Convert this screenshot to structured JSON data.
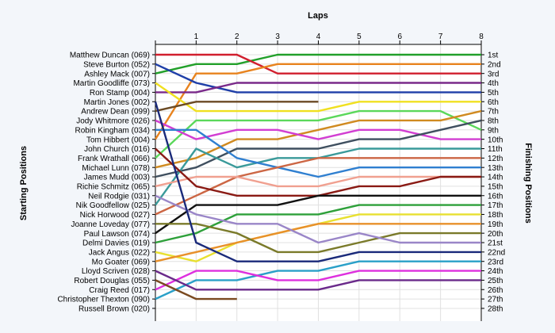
{
  "chart_data": {
    "type": "line",
    "title": "Laps",
    "ylabel_left": "Starting Positions",
    "ylabel_right": "Finishing Positions",
    "x_ticks": [
      "1",
      "2",
      "3",
      "4",
      "5",
      "6",
      "7",
      "8"
    ],
    "xlim": [
      0,
      8
    ],
    "ylim": [
      1,
      28
    ],
    "y_inverted": true,
    "grid": true,
    "starting_labels": [
      "Matthew Duncan (069)",
      "Steve Burton (052)",
      "Ashley Mack (007)",
      "Martin Goodliffe (073)",
      "Ron Stamp (004)",
      "Martin Jones (002)",
      "Andrew Dean (099)",
      "Jody Whitmore (026)",
      "Robin Kingham (034)",
      "Tom Hibbert (004)",
      "John Church (016)",
      "Frank Wrathall (066)",
      "Michael Lunn (078)",
      "James Mudd (003)",
      "Richie Schmitz (065)",
      "Neil Rodgie (031)",
      "Nik Goodfellow (025)",
      "Nick Horwood (027)",
      "Joanne Loveday (077)",
      "Paul Lawson (074)",
      "Delmi Davies (019)",
      "Jack Angus (022)",
      "Mo Goater (069)",
      "Lloyd Scriven (028)",
      "Robert Douglas (055)",
      "Craig Reed (017)",
      "Christopher Thexton (090)",
      "Russell Brown (020)"
    ],
    "finishing_labels": [
      "1st",
      "2nd",
      "3rd",
      "4th",
      "5th",
      "6th",
      "7th",
      "8th",
      "9th",
      "10th",
      "11th",
      "12th",
      "13th",
      "14th",
      "15th",
      "16th",
      "17th",
      "18th",
      "19th",
      "20th",
      "21st",
      "22nd",
      "23rd",
      "24th",
      "25th",
      "26th",
      "27th",
      "28th"
    ],
    "series": [
      {
        "color": "#22a02a",
        "positions": [
          3,
          2,
          2,
          1,
          1,
          1,
          1,
          1,
          1
        ]
      },
      {
        "color": "#d11f2e",
        "positions": [
          1,
          1,
          1,
          3,
          3,
          3,
          3,
          3,
          3
        ]
      },
      {
        "color": "#e8831e",
        "positions": [
          10,
          3,
          3,
          2,
          2,
          2,
          2,
          2,
          2
        ]
      },
      {
        "color": "#1f3fa8",
        "positions": [
          2,
          4,
          5,
          5,
          5,
          5,
          5,
          5,
          5
        ]
      },
      {
        "color": "#7a2a8a",
        "positions": [
          5,
          5,
          4,
          4,
          4,
          4,
          4,
          4,
          4
        ]
      },
      {
        "color": "#f0e020",
        "positions": [
          4,
          7,
          7,
          7,
          7,
          6,
          6,
          6,
          6
        ]
      },
      {
        "color": "#6b4a24",
        "positions": [
          7,
          6,
          6,
          6,
          6
        ]
      },
      {
        "color": "#5bd85b",
        "positions": [
          12,
          8,
          8,
          8,
          8,
          7,
          7,
          7,
          9
        ]
      },
      {
        "color": "#d08a20",
        "positions": [
          13,
          12,
          10,
          10,
          9,
          8,
          8,
          8,
          7
        ]
      },
      {
        "color": "#d23ed2",
        "positions": [
          8,
          10,
          9,
          9,
          10,
          9,
          9,
          10,
          10
        ]
      },
      {
        "color": "#3f4f5f",
        "positions": [
          14,
          13,
          11,
          11,
          11,
          10,
          10,
          9,
          8
        ]
      },
      {
        "color": "#3a9a9a",
        "positions": [
          17,
          11,
          13,
          12,
          12,
          11,
          11,
          11,
          11
        ]
      },
      {
        "color": "#2f7fd0",
        "positions": [
          9,
          9,
          12,
          13,
          14,
          13,
          13,
          13,
          13
        ]
      },
      {
        "color": "#cc6644",
        "positions": [
          18,
          16,
          14,
          13,
          12,
          12,
          12,
          12,
          12
        ]
      },
      {
        "color": "#f0a090",
        "positions": [
          15,
          14,
          14,
          15,
          15,
          14,
          14,
          14,
          14
        ]
      },
      {
        "color": "#8a1a14",
        "positions": [
          11,
          15,
          16,
          16,
          16,
          15,
          15,
          14,
          14
        ]
      },
      {
        "color": "#111111",
        "positions": [
          20,
          17,
          17,
          17,
          16,
          16,
          16,
          16,
          16
        ]
      },
      {
        "color": "#2ea03a",
        "positions": [
          21,
          20,
          18,
          18,
          18,
          17,
          17,
          17,
          17
        ]
      },
      {
        "color": "#e8e030",
        "positions": [
          22,
          23,
          21,
          20,
          19,
          18,
          18,
          18,
          18
        ]
      },
      {
        "color": "#e8902a",
        "positions": [
          23,
          22,
          21,
          20,
          19,
          19,
          19,
          19,
          19
        ]
      },
      {
        "color": "#7a7a2a",
        "positions": [
          19,
          19,
          20,
          22,
          22,
          21,
          20,
          20,
          20
        ]
      },
      {
        "color": "#9a86c8",
        "positions": [
          16,
          18,
          19,
          19,
          21,
          20,
          21,
          21,
          21
        ]
      },
      {
        "color": "#1a2a7a",
        "positions": [
          6,
          21,
          23,
          23,
          23,
          22,
          22,
          22,
          22
        ]
      },
      {
        "color": "#2aa0c8",
        "positions": [
          27,
          25,
          25,
          24,
          24,
          23,
          23,
          23,
          23
        ]
      },
      {
        "color": "#de30de",
        "positions": [
          26,
          24,
          24,
          25,
          25,
          24,
          24,
          24,
          24
        ]
      },
      {
        "color": "#6a2a8a",
        "positions": [
          24,
          26,
          26,
          26,
          26,
          25,
          25,
          25,
          25
        ]
      },
      {
        "color": "#7a4a20",
        "positions": [
          25,
          27,
          27
        ]
      }
    ]
  }
}
